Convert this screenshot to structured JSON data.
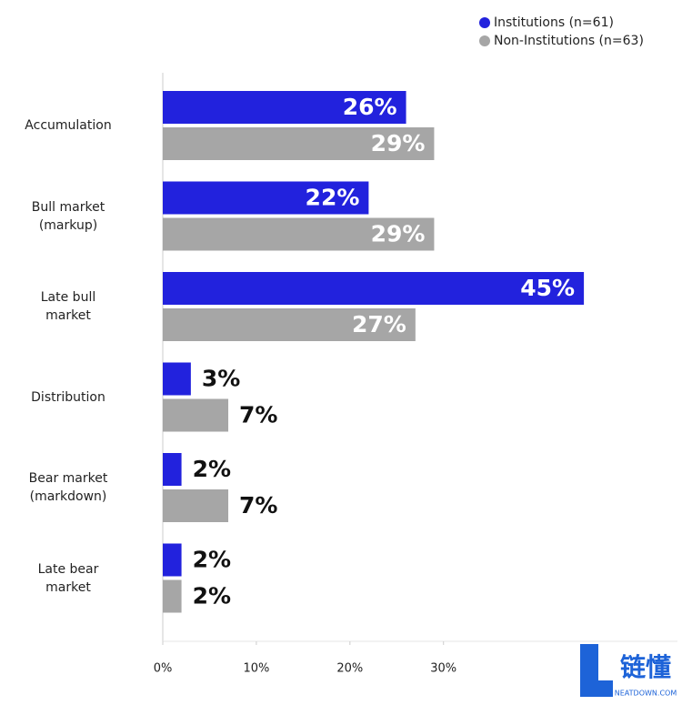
{
  "chart_data": {
    "type": "hbar",
    "categories": [
      "Accumulation",
      "Bull market\n(markup)",
      "Late bull\nmarket",
      "Distribution",
      "Bear market\n(markdown)",
      "Late bear\nmarket"
    ],
    "series": [
      {
        "name": "Institutions (n=61)",
        "color": "#2222dd",
        "values": [
          26,
          22,
          45,
          3,
          2,
          2
        ],
        "value_labels": [
          "26%",
          "22%",
          "45%",
          "3%",
          "2%",
          "2%"
        ]
      },
      {
        "name": "Non-Institutions (n=63)",
        "color": "#a6a6a6",
        "values": [
          29,
          29,
          27,
          7,
          7,
          2
        ],
        "value_labels": [
          "29%",
          "29%",
          "27%",
          "7%",
          "7%",
          "2%"
        ]
      }
    ],
    "xlim": [
      0,
      55
    ],
    "xticks": [
      {
        "value": 0,
        "label": "0%"
      },
      {
        "value": 10,
        "label": "10%"
      },
      {
        "value": 20,
        "label": "20%"
      },
      {
        "value": 30,
        "label": "30%"
      }
    ],
    "legend": "top-right"
  },
  "watermark": {
    "text": "链懂",
    "sub": "NEATDOWN.COM"
  }
}
